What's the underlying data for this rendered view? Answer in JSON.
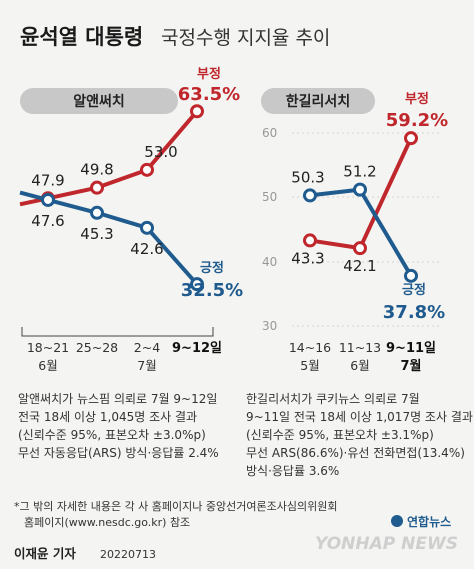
{
  "title": {
    "main": "윤석열 대통령",
    "sub": "국정수행 지지율 추이"
  },
  "colors": {
    "disapprove": "#c0272d",
    "approve": "#1f5b8e",
    "background": "#f4f4f2"
  },
  "chart_data": [
    {
      "type": "line",
      "pollster": "알앤써치",
      "categories": [
        "18~21",
        "25~28",
        "2~4",
        "9~12일"
      ],
      "category_months": [
        "6월",
        "",
        "7월",
        ""
      ],
      "highlight_category": 3,
      "series": [
        {
          "name": "부정",
          "values": [
            47.9,
            49.8,
            53.0,
            63.5
          ],
          "labels": [
            "47.9",
            "49.8",
            "53.0",
            "63.5%"
          ]
        },
        {
          "name": "긍정",
          "values": [
            47.6,
            45.3,
            42.6,
            32.5
          ],
          "labels": [
            "47.6",
            "45.3",
            "42.6",
            "32.5%"
          ]
        }
      ],
      "ylim": [
        25,
        70
      ],
      "grid": false,
      "note": [
        "알앤써치가 뉴스핌 의뢰로 7월 9~12일",
        "전국 18세 이상 1,045명 조사 결과",
        "(신뢰수준 95%, 표본오차 ±3.0%p)",
        "무선 자동응답(ARS) 방식·응답률 2.4%"
      ]
    },
    {
      "type": "line",
      "pollster": "한길리서치",
      "categories": [
        "14~16",
        "11~13",
        "9~11일"
      ],
      "category_months": [
        "5월",
        "6월",
        "7월"
      ],
      "highlight_category": 2,
      "series": [
        {
          "name": "부정",
          "values": [
            43.3,
            42.1,
            59.2
          ],
          "labels": [
            "43.3",
            "42.1",
            "59.2%"
          ]
        },
        {
          "name": "긍정",
          "values": [
            50.3,
            51.2,
            37.8
          ],
          "labels": [
            "50.3",
            "51.2",
            "37.8%"
          ]
        }
      ],
      "yticks": [
        30,
        40,
        50,
        60
      ],
      "ylim": [
        30,
        60
      ],
      "grid": true,
      "note": [
        "한길리서치가 쿠키뉴스 의뢰로 7월",
        "9~11일 전국 18세 이상 1,017명 조사 결과",
        "(신뢰수준 95%, 표본오차 ±3.1%p)",
        "무선 ARS(86.6%)·유선 전화면접(13.4%)",
        "방식·응답률 3.6%"
      ]
    }
  ],
  "footnote": [
    "*그 밖의 자세한 내용은 각 사 홈페이지나 중앙선거여론조사심의위원회",
    "홈페이지(www.nesdc.go.kr) 참조"
  ],
  "credit": {
    "author": "이재윤 기자",
    "date": "20220713"
  },
  "logo": {
    "ko": "연합뉴스",
    "en": "YONHAP NEWS"
  }
}
